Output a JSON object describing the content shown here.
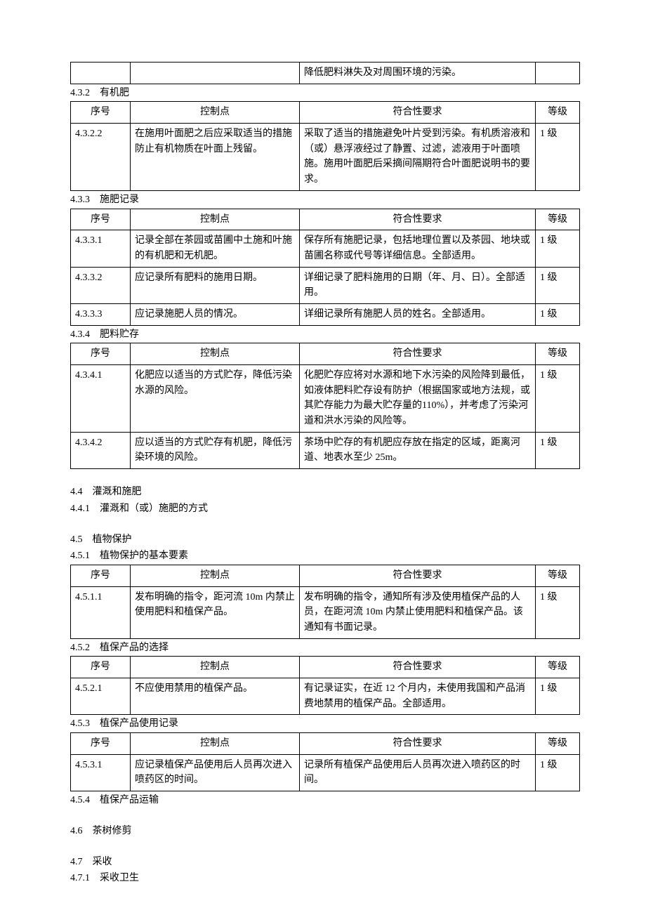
{
  "table_top": {
    "row": {
      "num": "",
      "ctrl": "",
      "req": "降低肥料淋失及对周围环境的污染。",
      "grade": ""
    }
  },
  "s432": {
    "title": "4.3.2　有机肥",
    "head": {
      "num": "序号",
      "ctrl": "控制点",
      "req": "符合性要求",
      "grade": "等级"
    },
    "r1": {
      "num": "4.3.2.2",
      "ctrl": "在施用叶面肥之后应采取适当的措施防止有机物质在叶面上残留。",
      "req": "采取了适当的措施避免叶片受到污染。有机质溶液和（或）悬浮液经过了静置、过滤，滤液用于叶面喷施。施用叶面肥后采摘间隔期符合叶面肥说明书的要求。",
      "grade": "1 级"
    }
  },
  "s433": {
    "title": "4.3.3　施肥记录",
    "head": {
      "num": "序号",
      "ctrl": "控制点",
      "req": "符合性要求",
      "grade": "等级"
    },
    "r1": {
      "num": "4.3.3.1",
      "ctrl": "记录全部在茶园或苗圃中土施和叶施的有机肥和无机肥。",
      "req": "保存所有施肥记录，包括地理位置以及茶园、地块或苗圃名称或代号等详细信息。全部适用。",
      "grade": "1 级"
    },
    "r2": {
      "num": "4.3.3.2",
      "ctrl": "应记录所有肥料的施用日期。",
      "req": "详细记录了肥料施用的日期（年、月、日）。全部适用。",
      "grade": "1 级"
    },
    "r3": {
      "num": "4.3.3.3",
      "ctrl": "应记录施肥人员的情况。",
      "req": "详细记录所有施肥人员的姓名。全部适用。",
      "grade": "1 级"
    }
  },
  "s434": {
    "title": "4.3.4　肥料贮存",
    "head": {
      "num": "序号",
      "ctrl": "控制点",
      "req": "符合性要求",
      "grade": "等级"
    },
    "r1": {
      "num": "4.3.4.1",
      "ctrl": "化肥应以适当的方式贮存，降低污染水源的风险。",
      "req": "化肥贮存应将对水源和地下水污染的风险降到最低，如液体肥料贮存设有防护（根据国家或地方法规，或其贮存能力为最大贮存量的110%），并考虑了污染河道和洪水污染的风险等。",
      "grade": "1 级"
    },
    "r2": {
      "num": "4.3.4.2",
      "ctrl": "应以适当的方式贮存有机肥，降低污染环境的风险。",
      "req": "茶场中贮存的有机肥应存放在指定的区域，距离河道、地表水至少 25m。",
      "grade": "1 级"
    }
  },
  "s44": {
    "title": "4.4　灌溉和施肥"
  },
  "s441": {
    "title": "4.4.1　灌溉和（或）施肥的方式"
  },
  "s45": {
    "title": "4.5　植物保护"
  },
  "s451": {
    "title": "4.5.1　植物保护的基本要素",
    "head": {
      "num": "序号",
      "ctrl": "控制点",
      "req": "符合性要求",
      "grade": "等级"
    },
    "r1": {
      "num": "4.5.1.1",
      "ctrl": "发布明确的指令，距河流 10m 内禁止使用肥料和植保产品。",
      "req": "发布明确的指令，通知所有涉及使用植保产品的人员，在距河流 10m 内禁止使用肥料和植保产品。该通知有书面记录。",
      "grade": "1 级"
    }
  },
  "s452": {
    "title": "4.5.2　植保产品的选择",
    "head": {
      "num": "序号",
      "ctrl": "控制点",
      "req": "符合性要求",
      "grade": "等级"
    },
    "r1": {
      "num": "4.5.2.1",
      "ctrl": "不应使用禁用的植保产品。",
      "req": "有记录证实，在近 12 个月内，未使用我国和产品消费地禁用的植保产品。全部适用。",
      "grade": "1 级"
    }
  },
  "s453": {
    "title": "4.5.3　植保产品使用记录",
    "head": {
      "num": "序号",
      "ctrl": "控制点",
      "req": "符合性要求",
      "grade": "等级"
    },
    "r1": {
      "num": "4.5.3.1",
      "ctrl": "应记录植保产品使用后人员再次进入喷药区的时间。",
      "req": "记录所有植保产品使用后人员再次进入喷药区的时间。",
      "grade": "1 级"
    }
  },
  "s454": {
    "title": "4.5.4　植保产品运输"
  },
  "s46": {
    "title": "4.6　茶树修剪"
  },
  "s47": {
    "title": "4.7　采收"
  },
  "s471": {
    "title": "4.7.1　采收卫生"
  }
}
